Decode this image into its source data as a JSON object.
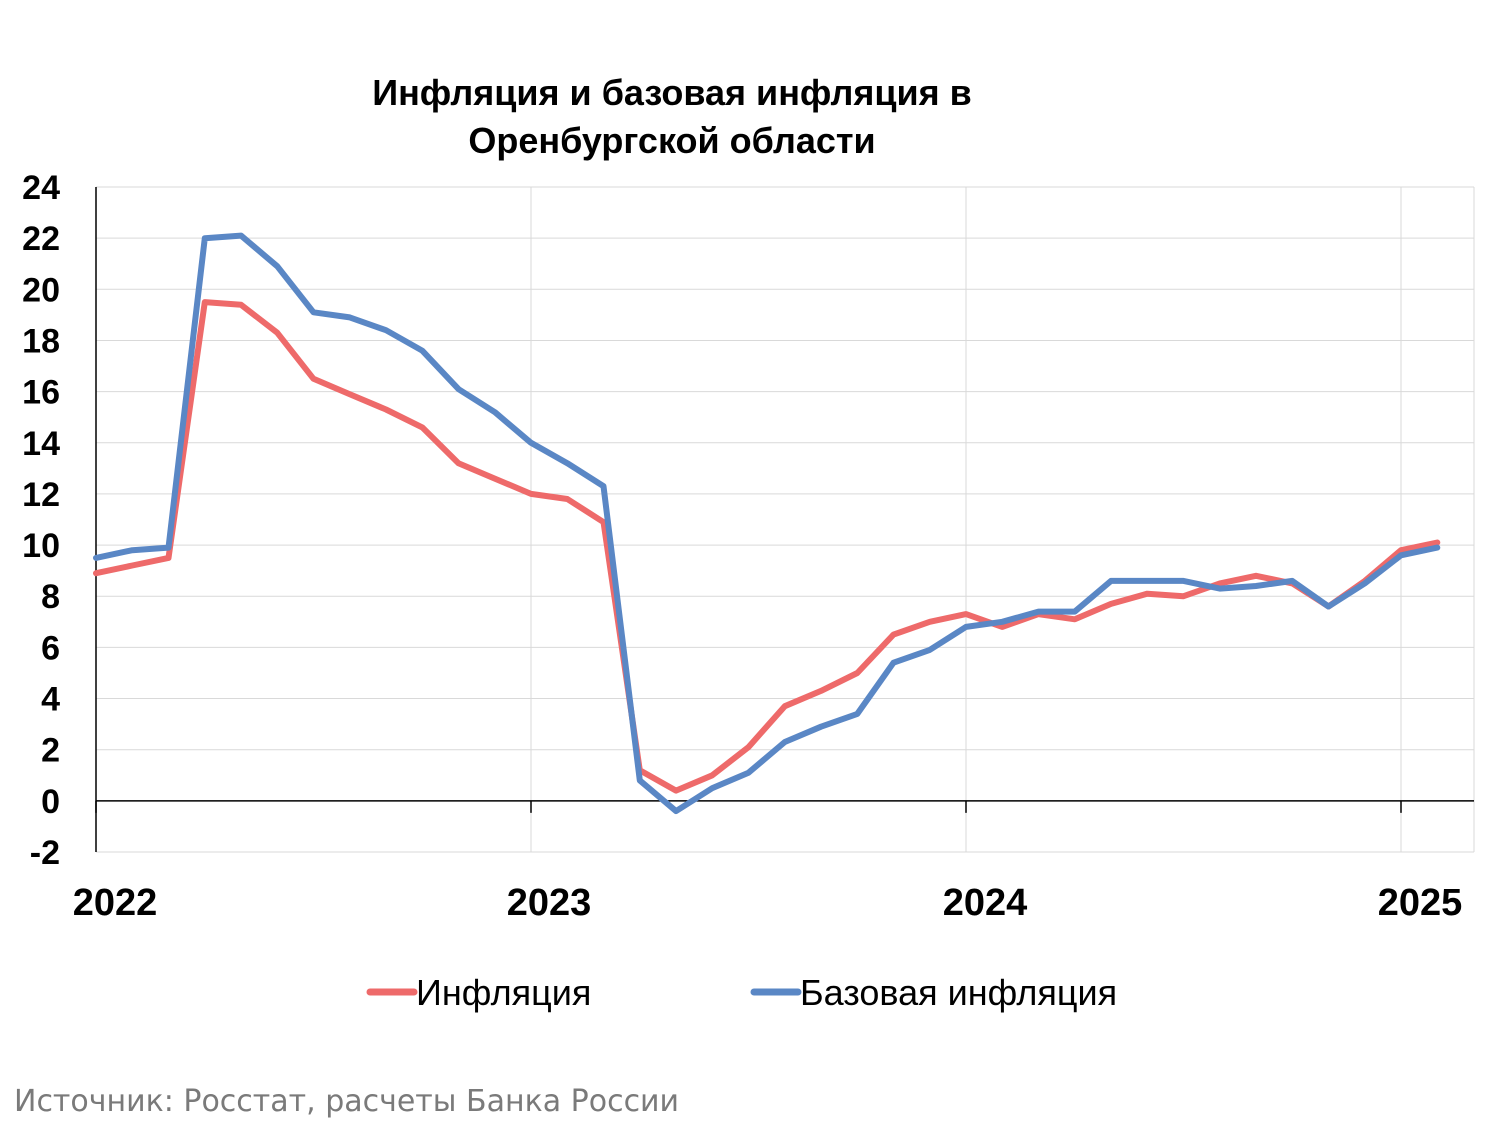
{
  "chart_data": {
    "type": "line",
    "title": [
      "Инфляция и базовая инфляция в",
      "Оренбургской области"
    ],
    "source": "Источник: Росстат, расчеты Банка России",
    "ylim": [
      -2,
      24
    ],
    "yticks": [
      -2,
      0,
      2,
      4,
      6,
      8,
      10,
      12,
      14,
      16,
      18,
      20,
      22,
      24
    ],
    "xticks": [
      {
        "label": "2022",
        "x": 0
      },
      {
        "label": "2023",
        "x": 12
      },
      {
        "label": "2024",
        "x": 24
      },
      {
        "label": "2025",
        "x": 36
      }
    ],
    "x_unit": "months since January 2022",
    "grid": true,
    "legend": "bottom",
    "series": [
      {
        "name": "Инфляция",
        "color": "#ee6a6a",
        "values": [
          8.9,
          9.2,
          9.5,
          19.5,
          19.4,
          18.3,
          16.5,
          15.9,
          15.3,
          14.6,
          13.2,
          12.6,
          12.0,
          11.8,
          10.9,
          1.2,
          0.4,
          1.0,
          2.1,
          3.7,
          4.3,
          5.0,
          6.5,
          7.0,
          7.3,
          6.8,
          7.3,
          7.1,
          7.7,
          8.1,
          8.0,
          8.5,
          8.8,
          8.5,
          7.6,
          8.6,
          9.8,
          10.1
        ]
      },
      {
        "name": "Базовая инфляция",
        "color": "#5a87c5",
        "values": [
          9.5,
          9.8,
          9.9,
          22.0,
          22.1,
          20.9,
          19.1,
          18.9,
          18.4,
          17.6,
          16.1,
          15.2,
          14.0,
          13.2,
          12.3,
          0.8,
          -0.4,
          0.5,
          1.1,
          2.3,
          2.9,
          3.4,
          5.4,
          5.9,
          6.8,
          7.0,
          7.4,
          7.4,
          8.6,
          8.6,
          8.6,
          8.3,
          8.4,
          8.6,
          7.6,
          8.5,
          9.6,
          9.9
        ]
      }
    ]
  }
}
